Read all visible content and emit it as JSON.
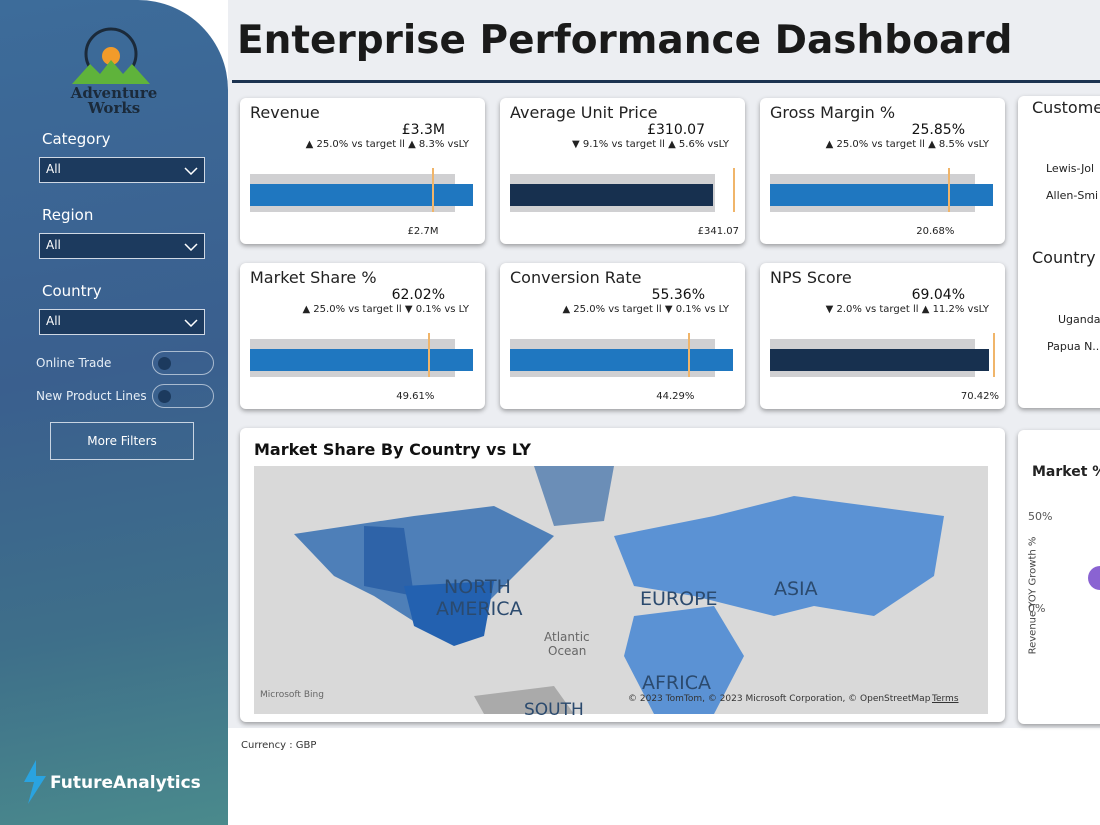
{
  "sidebar": {
    "logo": [
      "Adventure",
      "Works"
    ],
    "filters": [
      {
        "label": "Category",
        "value": "All"
      },
      {
        "label": "Region",
        "value": "All"
      },
      {
        "label": "Country",
        "value": "All"
      }
    ],
    "toggles": [
      "Online Trade",
      "New Product Lines"
    ],
    "button": "More Filters",
    "brand": "FutureAnalytics"
  },
  "header": {
    "title": "Enterprise Performance Dashboard"
  },
  "kpis": [
    {
      "title": "Revenue",
      "value": {
        "value": 3300000,
        "label": "£3.3M"
      },
      "comparison": "▲ 25.0% vs target ll ▲ 8.3% vsLY",
      "target": {
        "value": 2700000,
        "label": "£2.7M"
      },
      "color": "#1f77c0"
    },
    {
      "title": "Average Unit Price",
      "value": {
        "value": 310.07,
        "label": "£310.07"
      },
      "comparison": "▼ 9.1% vs target ll ▲ 5.6% vsLY",
      "target": {
        "value": 341.07,
        "label": "£341.07"
      },
      "color": "#17304f"
    },
    {
      "title": "Gross Margin %",
      "value": {
        "value": 25.85,
        "label": "25.85%"
      },
      "comparison": "▲ 25.0% vs target ll ▲ 8.5% vsLY",
      "target": {
        "value": 20.68,
        "label": "20.68%"
      },
      "color": "#1f77c0"
    },
    {
      "title": "Market Share %",
      "value": {
        "value": 62.02,
        "label": "62.02%"
      },
      "comparison": "▲ 25.0% vs target ll ▼ 0.1% vs LY",
      "target": {
        "value": 49.61,
        "label": "49.61%"
      },
      "color": "#1f77c0"
    },
    {
      "title": "Conversion Rate",
      "value": {
        "value": 55.36,
        "label": "55.36%"
      },
      "comparison": "▲ 25.0% vs target ll ▼ 0.1% vs LY",
      "target": {
        "value": 44.29,
        "label": "44.29%"
      },
      "color": "#1f77c0"
    },
    {
      "title": "NPS Score",
      "value": {
        "value": 69.04,
        "label": "69.04%"
      },
      "comparison": "▼ 2.0% vs target ll ▲ 11.2% vsLY",
      "target": {
        "value": 70.42,
        "label": "70.42%"
      },
      "color": "#17304f"
    }
  ],
  "map": {
    "title": "Market Share By Country vs LY",
    "labels": [
      "NORTH",
      "AMERICA",
      "EUROPE",
      "ASIA",
      "AFRICA",
      "SOUTH",
      "Atlantic",
      "Ocean"
    ],
    "attribution": "© 2023 TomTom, © 2023 Microsoft Corporation, © OpenStreetMap",
    "terms": "Terms",
    "provider": "Microsoft Bing"
  },
  "footer": {
    "currency": "Currency : GBP"
  },
  "right_panel": {
    "customer_title": "Custome",
    "customers": [
      "Lewis-Jol",
      "Allen-Smi"
    ],
    "country_title": "Country",
    "countries": [
      "Uganda",
      "Papua N..."
    ],
    "scatter_title": "Market %,",
    "y_axis_label": "Revenue YOY Growth %",
    "yticks": [
      "50%",
      "0%"
    ]
  }
}
